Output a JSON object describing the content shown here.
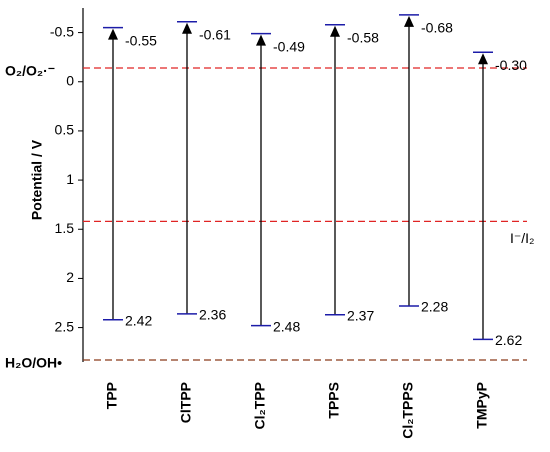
{
  "chart_data": {
    "type": "energy-levels",
    "y_label": "Potential / V",
    "categories": [
      "TPP",
      "ClTPP",
      "Cl₂TPP",
      "TPPS",
      "Cl₂TPPS",
      "TMPyP"
    ],
    "series": [
      {
        "values": [
          -0.55,
          -0.61,
          -0.49,
          -0.58,
          -0.68,
          -0.3
        ],
        "value_labels": [
          "-0.55",
          "-0.61",
          "-0.49",
          "-0.58",
          "-0.68",
          "-0.30"
        ],
        "color": "#1c1ca8"
      },
      {
        "values": [
          2.42,
          2.36,
          2.48,
          2.37,
          2.28,
          2.62
        ],
        "color": "#1c1ca8"
      }
    ],
    "arrow_color": "#000000",
    "ylim": [
      -0.75,
      2.85
    ],
    "y_inverted": true,
    "yticks": [
      -0.5,
      0,
      0.5,
      1,
      1.5,
      2,
      2.5
    ],
    "reference_lines": [
      {
        "label": "O₂/O₂·⁻",
        "value": -0.14,
        "color": "#e02424",
        "side": "left"
      },
      {
        "label": "I⁻/I₂",
        "value": 1.42,
        "color": "#e02424",
        "side": "right"
      },
      {
        "label": "H₂O/OH•",
        "value": 2.83,
        "color": "#8b3a1a",
        "side": "left"
      }
    ]
  }
}
